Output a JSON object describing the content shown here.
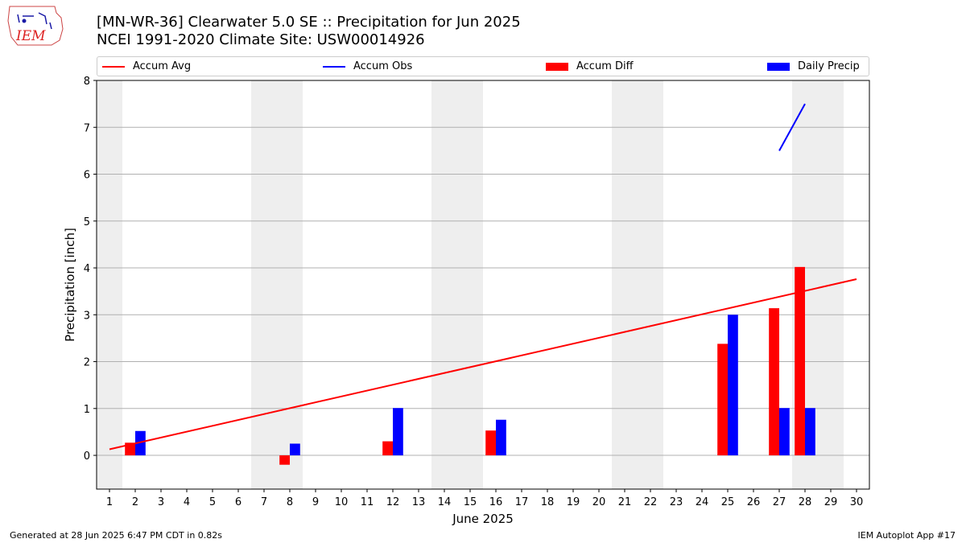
{
  "header": {
    "title_line1": "[MN-WR-36] Clearwater 5.0 SE :: Precipitation for Jun 2025",
    "title_line2": "NCEI 1991-2020 Climate Site: USW00014926"
  },
  "logo": {
    "text": "IEM"
  },
  "footer": {
    "left": "Generated at 28 Jun 2025 6:47 PM CDT in 0.82s",
    "right": "IEM Autoplot App #17"
  },
  "colors": {
    "accum_avg": "#ff0000",
    "accum_obs": "#0000ff",
    "accum_diff": "#ff0000",
    "daily_precip": "#0000ff",
    "weekend_shade": "#eeeeee",
    "grid": "#b0b0b0"
  },
  "chart_data": {
    "type": "bar",
    "xlabel": "June 2025",
    "ylabel": "Precipitation [inch]",
    "xlim": [
      0.5,
      30.5
    ],
    "ylim": [
      -0.72,
      8
    ],
    "yticks": [
      0,
      1,
      2,
      3,
      4,
      5,
      6,
      7,
      8
    ],
    "days": [
      1,
      2,
      3,
      4,
      5,
      6,
      7,
      8,
      9,
      10,
      11,
      12,
      13,
      14,
      15,
      16,
      17,
      18,
      19,
      20,
      21,
      22,
      23,
      24,
      25,
      26,
      27,
      28,
      29,
      30
    ],
    "weekend_days": [
      1,
      7,
      8,
      14,
      15,
      21,
      22,
      28,
      29
    ],
    "legend": [
      "Accum Avg",
      "Accum Obs",
      "Accum Diff",
      "Daily Precip"
    ],
    "grid": "horizontal",
    "series": [
      {
        "name": "Accum Avg",
        "kind": "line",
        "x": [
          1,
          30
        ],
        "values": [
          0.13,
          3.76
        ]
      },
      {
        "name": "Accum Obs",
        "kind": "line",
        "x": [
          27,
          28
        ],
        "values": [
          6.5,
          7.5
        ]
      },
      {
        "name": "Accum Diff",
        "kind": "bar",
        "x": [
          2,
          8,
          12,
          16,
          25,
          27,
          28
        ],
        "values": [
          0.27,
          -0.2,
          0.3,
          0.53,
          2.38,
          3.14,
          4.02
        ]
      },
      {
        "name": "Daily Precip",
        "kind": "bar",
        "x": [
          2,
          8,
          12,
          16,
          25,
          27,
          28
        ],
        "values": [
          0.52,
          0.25,
          1.01,
          0.76,
          3.0,
          1.01,
          1.01
        ]
      }
    ]
  }
}
